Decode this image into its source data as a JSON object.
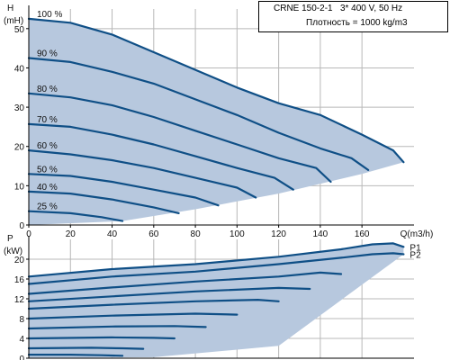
{
  "info_box": {
    "model": "CRNE 150-2-1",
    "supply": "3* 400 V, 50 Hz",
    "density": "Плотность = 1000 kg/m3"
  },
  "colors": {
    "fill": "#b7c8de",
    "curve": "#0f4f86",
    "grid": "#b8b8b8",
    "axis": "#000000"
  },
  "chart_data": [
    {
      "type": "line",
      "title": "",
      "ylabel_top": "H",
      "ylabel_unit": "(mH)",
      "xlabel": "Q(m3/h)",
      "xlim": [
        0,
        185
      ],
      "ylim": [
        0,
        55
      ],
      "x_ticks": [
        "0",
        "20",
        "40",
        "60",
        "80",
        "100",
        "120",
        "140",
        "160"
      ],
      "y_ticks": [
        "0",
        "10",
        "20",
        "30",
        "40",
        "50"
      ],
      "grid": true,
      "series": [
        {
          "name": "100 %",
          "x": [
            0,
            20,
            40,
            60,
            80,
            100,
            120,
            140,
            160,
            175,
            180
          ],
          "y": [
            52.5,
            51.5,
            48.5,
            44,
            39.5,
            35,
            31,
            28,
            23,
            19,
            16
          ]
        },
        {
          "name": "90 %",
          "x": [
            0,
            20,
            40,
            60,
            80,
            100,
            120,
            140,
            155,
            163
          ],
          "y": [
            42.5,
            41.5,
            39,
            36,
            32,
            28,
            23.5,
            19.5,
            17,
            14
          ]
        },
        {
          "name": "80 %",
          "x": [
            0,
            20,
            40,
            60,
            80,
            100,
            120,
            138,
            145
          ],
          "y": [
            33.5,
            32.5,
            30.5,
            27.5,
            24,
            20.5,
            17,
            14.5,
            11
          ]
        },
        {
          "name": "70 %",
          "x": [
            0,
            20,
            40,
            60,
            80,
            100,
            118,
            127
          ],
          "y": [
            25.7,
            25,
            23,
            20.5,
            17.5,
            14.5,
            12,
            9
          ]
        },
        {
          "name": "60 %",
          "x": [
            0,
            20,
            40,
            60,
            80,
            100,
            109
          ],
          "y": [
            19,
            18,
            16.5,
            14.5,
            12,
            9.5,
            7
          ]
        },
        {
          "name": "50 %",
          "x": [
            0,
            20,
            40,
            60,
            80,
            91
          ],
          "y": [
            13,
            12.5,
            11,
            9,
            7,
            5
          ]
        },
        {
          "name": "40 %",
          "x": [
            0,
            20,
            40,
            60,
            72
          ],
          "y": [
            8.5,
            8,
            6.5,
            4.5,
            3
          ]
        },
        {
          "name": "25 %",
          "x": [
            0,
            20,
            35,
            45
          ],
          "y": [
            3.5,
            3,
            2,
            1
          ]
        }
      ],
      "region_lower_boundary": {
        "x": [
          0,
          45,
          80,
          120,
          160,
          180
        ],
        "y": [
          0,
          1,
          4,
          8,
          13,
          16
        ]
      }
    },
    {
      "type": "line",
      "title": "",
      "ylabel_top": "P",
      "ylabel_unit": "(kW)",
      "xlim": [
        0,
        185
      ],
      "ylim": [
        0,
        24
      ],
      "y_ticks": [
        "0",
        "4",
        "8",
        "12",
        "16",
        "20"
      ],
      "grid": true,
      "series": [
        {
          "name": "P1",
          "x": [
            0,
            40,
            80,
            120,
            150,
            165,
            175,
            180
          ],
          "y": [
            16.5,
            18,
            19,
            20.5,
            22,
            23,
            23.2,
            22.5
          ]
        },
        {
          "name": "P2",
          "x": [
            0,
            40,
            80,
            120,
            150,
            165,
            175,
            180
          ],
          "y": [
            15,
            16.5,
            17.5,
            19,
            20.3,
            21,
            21.2,
            21
          ]
        },
        {
          "name": "",
          "x": [
            0,
            40,
            80,
            120,
            140,
            150
          ],
          "y": [
            13,
            14.3,
            15.5,
            16.5,
            17.3,
            17
          ]
        },
        {
          "name": "",
          "x": [
            0,
            40,
            80,
            120,
            135
          ],
          "y": [
            11.5,
            12.5,
            13.5,
            14.2,
            14
          ]
        },
        {
          "name": "",
          "x": [
            0,
            40,
            80,
            110,
            120
          ],
          "y": [
            10,
            10.8,
            11.5,
            11.8,
            11.5
          ]
        },
        {
          "name": "",
          "x": [
            0,
            40,
            80,
            100
          ],
          "y": [
            8,
            8.6,
            9,
            8.8
          ]
        },
        {
          "name": "",
          "x": [
            0,
            40,
            70,
            85
          ],
          "y": [
            6,
            6.4,
            6.5,
            6.3
          ]
        },
        {
          "name": "",
          "x": [
            0,
            40,
            60,
            70
          ],
          "y": [
            4,
            4.2,
            4.1,
            4
          ]
        },
        {
          "name": "",
          "x": [
            0,
            30,
            45,
            55
          ],
          "y": [
            2,
            2.1,
            2.0,
            1.9
          ]
        },
        {
          "name": "",
          "x": [
            0,
            20,
            35,
            45
          ],
          "y": [
            0.7,
            0.7,
            0.6,
            0.5
          ]
        }
      ],
      "region_lower_boundary": {
        "x": [
          0,
          60,
          120,
          180
        ],
        "y": [
          0,
          0.2,
          2.5,
          21
        ]
      }
    }
  ]
}
